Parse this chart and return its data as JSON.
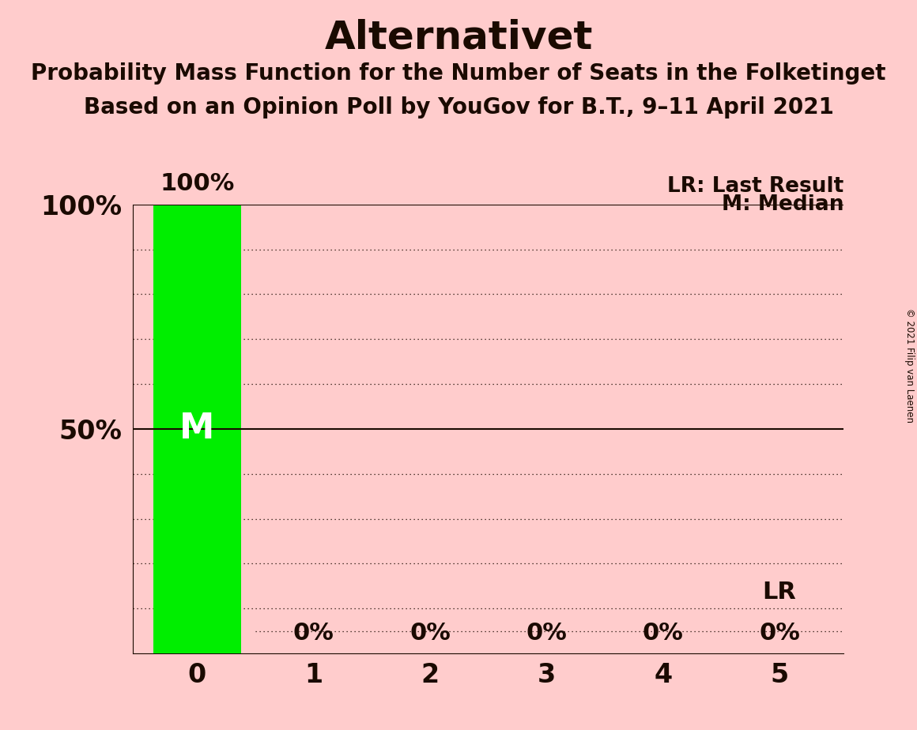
{
  "title": "Alternativet",
  "subtitle1": "Probability Mass Function for the Number of Seats in the Folketinget",
  "subtitle2": "Based on an Opinion Poll by YouGov for B.T., 9–11 April 2021",
  "copyright": "© 2021 Filip van Laenen",
  "categories": [
    0,
    1,
    2,
    3,
    4,
    5
  ],
  "values": [
    100,
    0,
    0,
    0,
    0,
    0
  ],
  "bar_color": "#00EE00",
  "background_color": "#FFCCCC",
  "text_color": "#1a0a00",
  "white_color": "#ffffff",
  "median_seat": 0,
  "last_result_seat": 5,
  "last_result_value": 0,
  "ylim": [
    0,
    100
  ],
  "grid_color": "#1a0a00",
  "title_fontsize": 36,
  "subtitle_fontsize": 20,
  "bar_label_fontsize": 22,
  "tick_fontsize": 24,
  "legend_fontsize": 19,
  "median_fontsize": 32,
  "lr_in_plot_fontsize": 22,
  "dotted_grid_levels": [
    10,
    20,
    30,
    40,
    60,
    70,
    80,
    90
  ],
  "solid_grid_levels": [
    50,
    100
  ],
  "lr_dotted_level": 5,
  "lr_label_level": 10
}
